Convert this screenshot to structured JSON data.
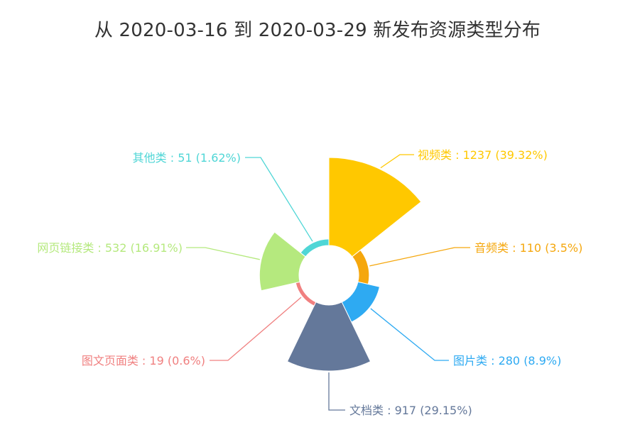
{
  "chart_data": {
    "type": "pie",
    "variant": "rose",
    "title": "从 2020-03-16 到 2020-03-29 新发布资源类型分布",
    "slices": [
      {
        "name": "视频类",
        "value": 1237,
        "percent": "39.32%",
        "color": "#FFC800",
        "label": "视频类 : 1237 (39.32%)"
      },
      {
        "name": "音频类",
        "value": 110,
        "percent": "3.5%",
        "color": "#F5A70D",
        "label": "音频类 : 110 (3.5%)"
      },
      {
        "name": "图片类",
        "value": 280,
        "percent": "8.9%",
        "color": "#2EAAF2",
        "label": "图片类 : 280 (8.9%)"
      },
      {
        "name": "文档类",
        "value": 917,
        "percent": "29.15%",
        "color": "#64789A",
        "label": "文档类 : 917 (29.15%)"
      },
      {
        "name": "图文页面类",
        "value": 19,
        "percent": "0.6%",
        "color": "#F08080",
        "label": "图文页面类 : 19 (0.6%)"
      },
      {
        "name": "网页链接类",
        "value": 532,
        "percent": "16.91%",
        "color": "#B5E97E",
        "label": "网页链接类 : 532 (16.91%)"
      },
      {
        "name": "其他类",
        "value": 51,
        "percent": "1.62%",
        "color": "#4FD6D6",
        "label": "其他类 : 51 (1.62%)"
      }
    ]
  }
}
